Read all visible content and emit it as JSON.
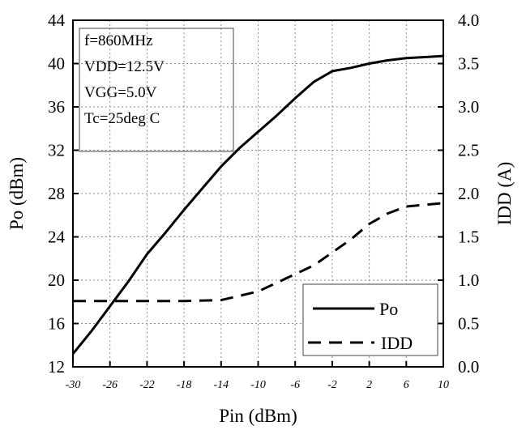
{
  "chart_data": {
    "type": "line",
    "xlabel": "Pin (dBm)",
    "ylabel_left": "Po (dBm)",
    "ylabel_right": "IDD (A)",
    "xlim": [
      -30,
      10
    ],
    "ylim_left": [
      12,
      44
    ],
    "ylim_right": [
      0.0,
      4.0
    ],
    "x_ticks": [
      "-30",
      "-26",
      "-22",
      "-18",
      "-14",
      "-10",
      "-6",
      "-2",
      "2",
      "6",
      "10"
    ],
    "y_left_ticks": [
      "12",
      "16",
      "20",
      "24",
      "28",
      "32",
      "36",
      "40",
      "44"
    ],
    "y_right_ticks": [
      "0.0",
      "0.5",
      "1.0",
      "1.5",
      "2.0",
      "2.5",
      "3.0",
      "3.5",
      "4.0"
    ],
    "grid": true,
    "conditions": [
      "f=860MHz",
      "VDD=12.5V",
      "VGG=5.0V",
      "Tc=25deg C"
    ],
    "legend_position": "bottom-right",
    "series": [
      {
        "name": "Po",
        "axis": "left",
        "style": "solid",
        "x": [
          -30,
          -28,
          -26,
          -24,
          -22,
          -20,
          -18,
          -16,
          -14,
          -12,
          -10,
          -8,
          -6,
          -4,
          -2,
          0,
          2,
          4,
          6,
          8,
          10
        ],
        "y": [
          13.2,
          15.3,
          17.6,
          19.9,
          22.4,
          24.4,
          26.5,
          28.5,
          30.5,
          32.2,
          33.7,
          35.2,
          36.8,
          38.3,
          39.3,
          39.6,
          40.0,
          40.3,
          40.5,
          40.6,
          40.7
        ]
      },
      {
        "name": "IDD",
        "axis": "right",
        "style": "dashed",
        "x": [
          -30,
          -26,
          -22,
          -18,
          -14,
          -12,
          -10,
          -8,
          -6,
          -4,
          -2,
          0,
          2,
          4,
          6,
          8,
          10
        ],
        "y": [
          0.76,
          0.76,
          0.76,
          0.76,
          0.77,
          0.82,
          0.87,
          0.97,
          1.07,
          1.17,
          1.32,
          1.47,
          1.65,
          1.77,
          1.85,
          1.87,
          1.89
        ]
      }
    ]
  }
}
